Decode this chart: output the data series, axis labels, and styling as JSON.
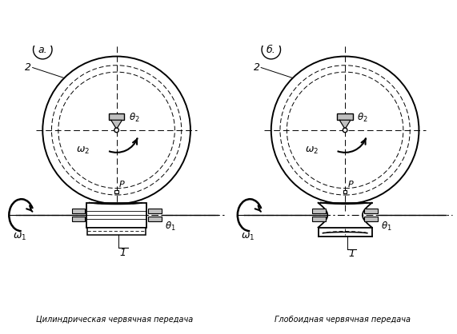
{
  "bg_color": "#ffffff",
  "line_color": "#000000",
  "gray_fill": "#c0c0c0",
  "label_a": "а.",
  "label_b": "б.",
  "caption_left": "Цилиндрическая червячная передача",
  "caption_right": "Глобоидная червячная передача"
}
